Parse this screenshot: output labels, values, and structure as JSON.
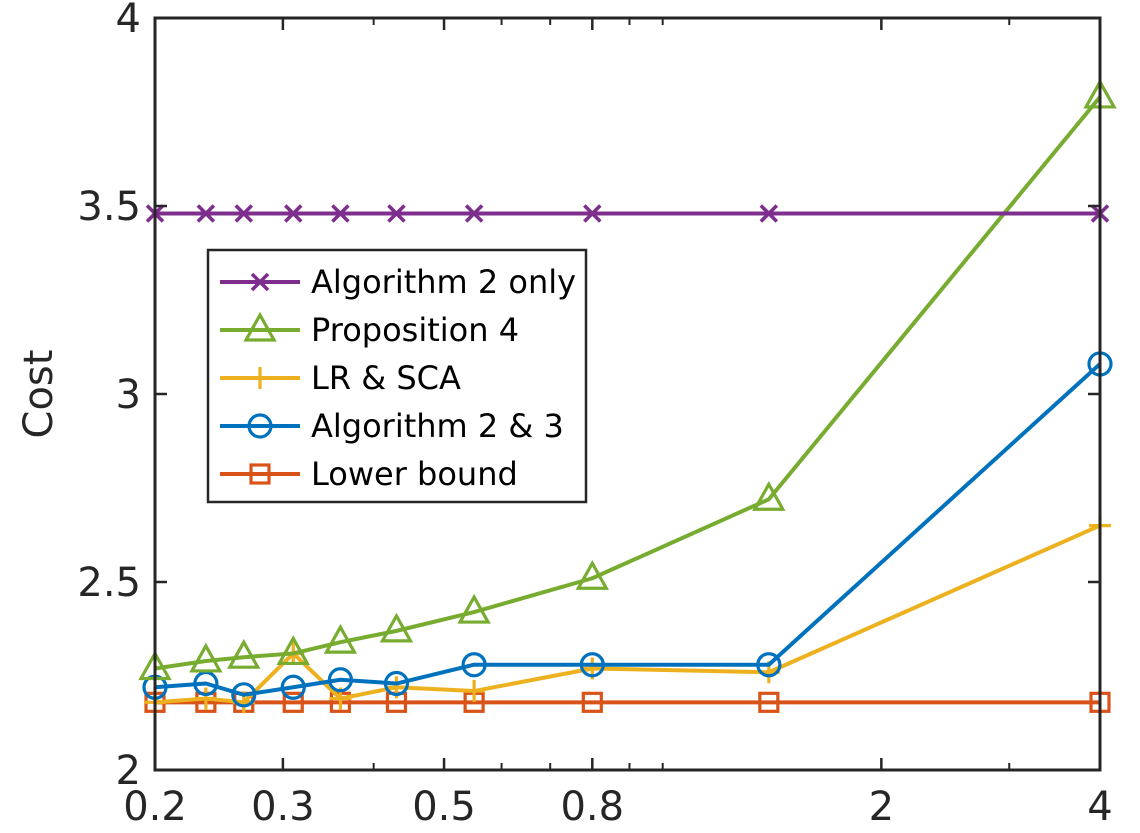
{
  "chart_data": {
    "type": "line",
    "title": "",
    "xlabel": "",
    "ylabel": "Cost",
    "xscale": "log",
    "xlim": [
      0.2,
      4
    ],
    "ylim": [
      2,
      4
    ],
    "xticks": [
      0.2,
      0.3,
      0.5,
      0.8,
      2,
      4
    ],
    "xtick_labels": [
      "0.2",
      "0.3",
      "0.5",
      "0.8",
      "2",
      "4"
    ],
    "yticks": [
      2,
      2.5,
      3,
      3.5,
      4
    ],
    "ytick_labels": [
      "2",
      "2.5",
      "3",
      "3.5",
      "4"
    ],
    "grid": false,
    "legend_position": "center-left",
    "x": [
      0.2,
      0.235,
      0.265,
      0.31,
      0.36,
      0.43,
      0.55,
      0.8,
      1.4,
      4
    ],
    "series": [
      {
        "name": "Algorithm 2 only",
        "marker": "x",
        "color": "#7E2F8E",
        "values": [
          3.48,
          3.48,
          3.48,
          3.48,
          3.48,
          3.48,
          3.48,
          3.48,
          3.48,
          3.48
        ]
      },
      {
        "name": "Proposition 4",
        "marker": "triangle",
        "color": "#77AC30",
        "values": [
          2.27,
          2.29,
          2.3,
          2.31,
          2.34,
          2.37,
          2.42,
          2.51,
          2.72,
          3.79
        ]
      },
      {
        "name": "LR & SCA",
        "marker": "plus",
        "color": "#EDB120",
        "values": [
          2.18,
          2.19,
          2.18,
          2.31,
          2.19,
          2.22,
          2.21,
          2.27,
          2.26,
          2.65
        ]
      },
      {
        "name": "Algorithm 2 & 3",
        "marker": "circle",
        "color": "#0072BD",
        "values": [
          2.22,
          2.23,
          2.2,
          2.22,
          2.24,
          2.23,
          2.28,
          2.28,
          2.28,
          3.08
        ]
      },
      {
        "name": "Lower bound",
        "marker": "square",
        "color": "#D95319",
        "values": [
          2.18,
          2.18,
          2.18,
          2.18,
          2.18,
          2.18,
          2.18,
          2.18,
          2.18,
          2.18
        ]
      }
    ]
  }
}
